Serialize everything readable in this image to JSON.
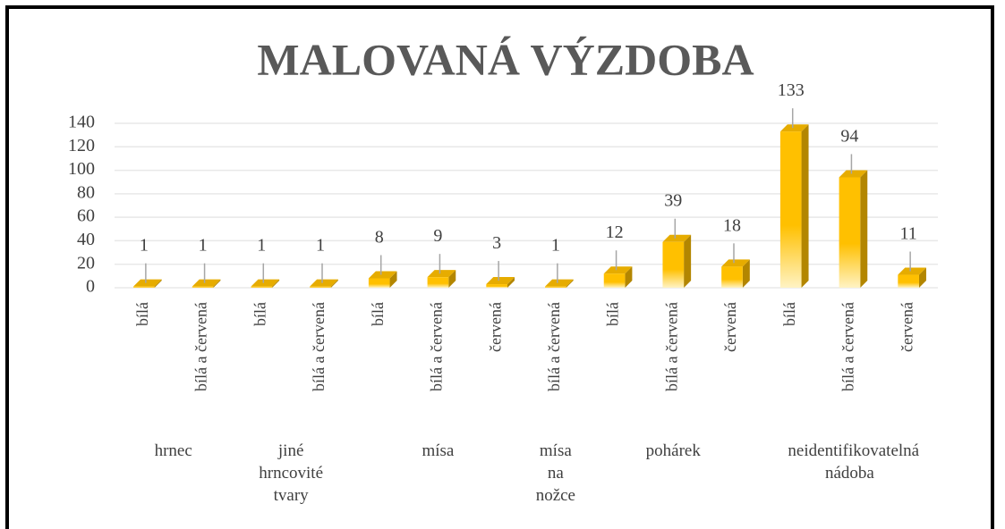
{
  "chart_data": {
    "type": "bar",
    "title": "MALOVANÁ VÝZDOBA",
    "color": "#ffc000",
    "groups": [
      {
        "name": "hrnec",
        "categories": [
          "bílá",
          "bílá a červená"
        ],
        "values": [
          1,
          1
        ]
      },
      {
        "name": "jiné hrncovité tvary",
        "categories": [
          "bílá",
          "bílá a červená"
        ],
        "values": [
          1,
          1
        ]
      },
      {
        "name": "mísa",
        "categories": [
          "bílá",
          "bílá a červená",
          "červená"
        ],
        "values": [
          8,
          9,
          3
        ]
      },
      {
        "name": "mísa na nožce",
        "categories": [
          "bílá a červená"
        ],
        "values": [
          1
        ]
      },
      {
        "name": "pohárek",
        "categories": [
          "bílá",
          "bílá a červená",
          "červená"
        ],
        "values": [
          12,
          39,
          18
        ]
      },
      {
        "name": "neidentifikovatelná nádoba",
        "categories": [
          "bílá",
          "bílá a červená",
          "červená"
        ],
        "values": [
          133,
          94,
          11
        ]
      }
    ],
    "ylim": [
      0,
      140
    ],
    "yticks": [
      0,
      20,
      40,
      60,
      80,
      100,
      120,
      140
    ],
    "grid": true
  }
}
